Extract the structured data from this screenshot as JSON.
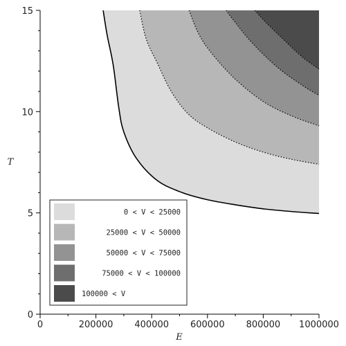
{
  "chart_data": {
    "type": "area",
    "title": "",
    "xlabel": "E",
    "ylabel": "T",
    "xlim": [
      0,
      1000000
    ],
    "ylim": [
      0,
      15
    ],
    "x_ticks": [
      0,
      200000,
      400000,
      600000,
      800000,
      1000000
    ],
    "x_tick_labels": [
      "0",
      "200000",
      "400000",
      "600000",
      "800000",
      "1000000"
    ],
    "y_ticks": [
      0,
      5,
      10,
      15
    ],
    "y_tick_labels": [
      "0",
      "5",
      "10",
      "15"
    ],
    "legend_position": "bottom-left",
    "regions": [
      {
        "label": "0 < V < 25000",
        "color": "#dcdcdc"
      },
      {
        "label": "25000 < V < 50000",
        "color": "#b7b7b7"
      },
      {
        "label": "50000 < V < 75000",
        "color": "#939393"
      },
      {
        "label": "75000 < V < 100000",
        "color": "#6e6e6e"
      },
      {
        "label": "100000 < V",
        "color": "#4b4b4b"
      }
    ],
    "contours": [
      {
        "level": 0,
        "style": "solid",
        "points": [
          [
            226000,
            15
          ],
          [
            240000,
            13.8
          ],
          [
            262000,
            12.3
          ],
          [
            282000,
            10.2
          ],
          [
            300000,
            9.0
          ],
          [
            345000,
            7.7
          ],
          [
            420000,
            6.6
          ],
          [
            510000,
            6.0
          ],
          [
            600000,
            5.65
          ],
          [
            700000,
            5.4
          ],
          [
            800000,
            5.2
          ],
          [
            900000,
            5.07
          ],
          [
            1000000,
            4.97
          ]
        ]
      },
      {
        "level": 25000,
        "style": "dotted",
        "points": [
          [
            357000,
            15
          ],
          [
            380000,
            13.6
          ],
          [
            420000,
            12.4
          ],
          [
            470000,
            11.0
          ],
          [
            530000,
            9.9
          ],
          [
            600000,
            9.2
          ],
          [
            700000,
            8.5
          ],
          [
            800000,
            8.0
          ],
          [
            900000,
            7.65
          ],
          [
            1000000,
            7.4
          ]
        ]
      },
      {
        "level": 50000,
        "style": "dotted",
        "points": [
          [
            534000,
            15
          ],
          [
            570000,
            13.8
          ],
          [
            620000,
            12.8
          ],
          [
            700000,
            11.6
          ],
          [
            800000,
            10.5
          ],
          [
            900000,
            9.8
          ],
          [
            1000000,
            9.3
          ]
        ]
      },
      {
        "level": 75000,
        "style": "dotted",
        "points": [
          [
            667000,
            15
          ],
          [
            700000,
            14.4
          ],
          [
            760000,
            13.4
          ],
          [
            850000,
            12.2
          ],
          [
            940000,
            11.3
          ],
          [
            1000000,
            10.8
          ]
        ]
      },
      {
        "level": 100000,
        "style": "dotted",
        "points": [
          [
            770000,
            15
          ],
          [
            810000,
            14.4
          ],
          [
            870000,
            13.6
          ],
          [
            940000,
            12.7
          ],
          [
            1000000,
            12.1
          ]
        ]
      }
    ]
  }
}
